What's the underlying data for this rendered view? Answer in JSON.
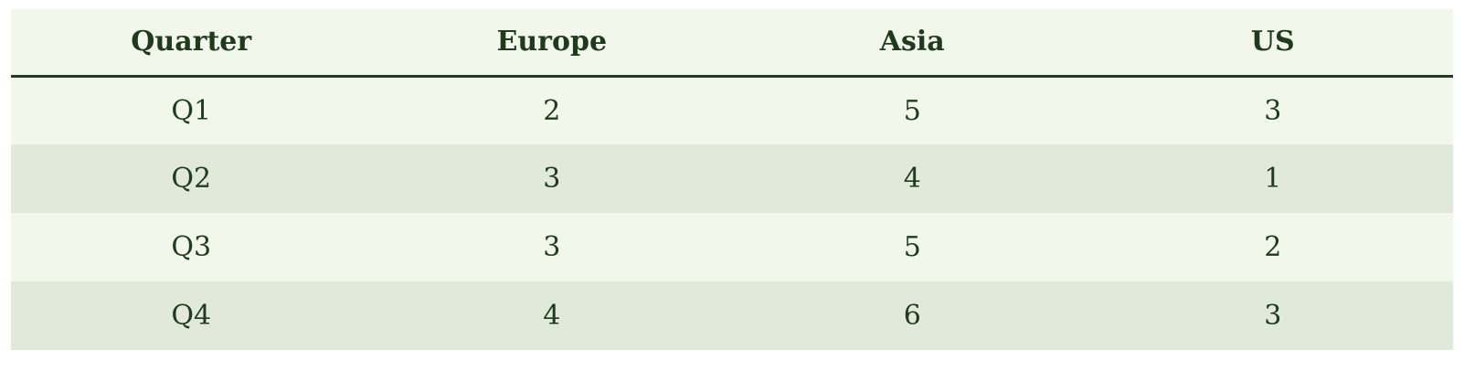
{
  "chart_data": {
    "type": "table",
    "columns": [
      "Quarter",
      "Europe",
      "Asia",
      "US"
    ],
    "rows": [
      [
        "Q1",
        "2",
        "5",
        "3"
      ],
      [
        "Q2",
        "3",
        "4",
        "1"
      ],
      [
        "Q3",
        "3",
        "5",
        "2"
      ],
      [
        "Q4",
        "4",
        "6",
        "3"
      ]
    ]
  },
  "colors": {
    "header_bg": "#f1f7ea",
    "row_light": "#f1f7ea",
    "row_dark": "#e1e9da",
    "text": "#1f3a1c",
    "rule": "#243a22"
  }
}
